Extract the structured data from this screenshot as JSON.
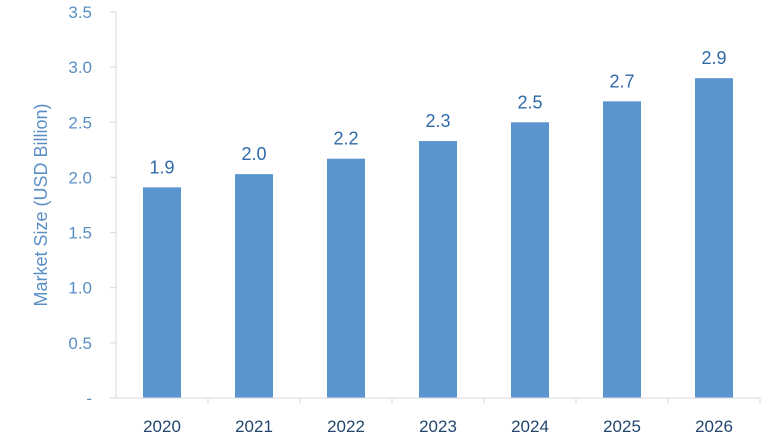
{
  "chart_data": {
    "type": "bar",
    "title": "",
    "xlabel": "",
    "ylabel": "Market Size (USD Billion)",
    "categories": [
      "2020",
      "2021",
      "2022",
      "2023",
      "2024",
      "2025",
      "2026"
    ],
    "values": [
      1.9,
      2.0,
      2.2,
      2.3,
      2.5,
      2.7,
      2.9
    ],
    "bar_heights": [
      1.91,
      2.03,
      2.17,
      2.33,
      2.5,
      2.69,
      2.9
    ],
    "data_labels": [
      "1.9",
      "2.0",
      "2.2",
      "2.3",
      "2.5",
      "2.7",
      "2.9"
    ],
    "ylim": [
      0,
      3.5
    ],
    "yticks": [
      0,
      0.5,
      1.0,
      1.5,
      2.0,
      2.5,
      3.0,
      3.5
    ],
    "ytick_labels": [
      "-",
      "0.5",
      "1.0",
      "1.5",
      "2.0",
      "2.5",
      "3.0",
      "3.5"
    ],
    "grid": false,
    "legend": "none",
    "bar_color": "#5b95cf",
    "axis_color": "#d9d9d9",
    "tick_label_color": "#5a8fc6",
    "category_label_color": "#23466f",
    "data_label_color": "#2f6aa8"
  }
}
